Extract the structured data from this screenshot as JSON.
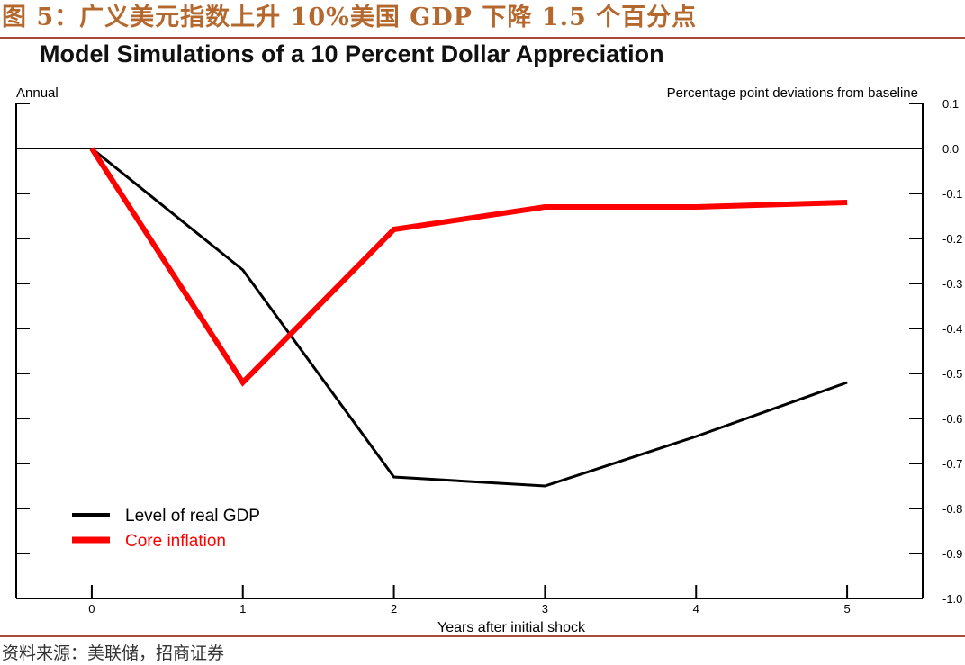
{
  "caption": "图 5：广义美元指数上升 10%美国 GDP 下降 1.5 个百分点",
  "source": "资料来源：美联储，招商证券",
  "chart_data": {
    "type": "line",
    "title": "Model Simulations of a 10 Percent Dollar Appreciation",
    "top_left_note": "Annual",
    "top_right_note": "Percentage point deviations from baseline",
    "xlabel": "Years after initial shock",
    "x": [
      0,
      1,
      2,
      3,
      4,
      5
    ],
    "x_tick_labels": [
      "0",
      "1",
      "2",
      "3",
      "4",
      "5"
    ],
    "xlim": [
      -0.5,
      5.5
    ],
    "ylim": [
      -1.0,
      0.1
    ],
    "y_ticks": [
      0.1,
      0.0,
      -0.1,
      -0.2,
      -0.3,
      -0.4,
      -0.5,
      -0.6,
      -0.7,
      -0.8,
      -0.9,
      -1.0
    ],
    "y_tick_labels": [
      "0.1",
      "0.0",
      "-0.1",
      "-0.2",
      "-0.3",
      "-0.4",
      "-0.5",
      "-0.6",
      "-0.7",
      "-0.8",
      "-0.9",
      "-1.0"
    ],
    "zero_line": 0.0,
    "legend_position": "bottom-left",
    "series": [
      {
        "name": "Level of real GDP",
        "color": "#000000",
        "values": [
          0.0,
          -0.27,
          -0.73,
          -0.75,
          -0.64,
          -0.52
        ]
      },
      {
        "name": "Core inflation",
        "color": "#ff0000",
        "values": [
          0.0,
          -0.52,
          -0.18,
          -0.13,
          -0.13,
          -0.12
        ]
      }
    ]
  }
}
